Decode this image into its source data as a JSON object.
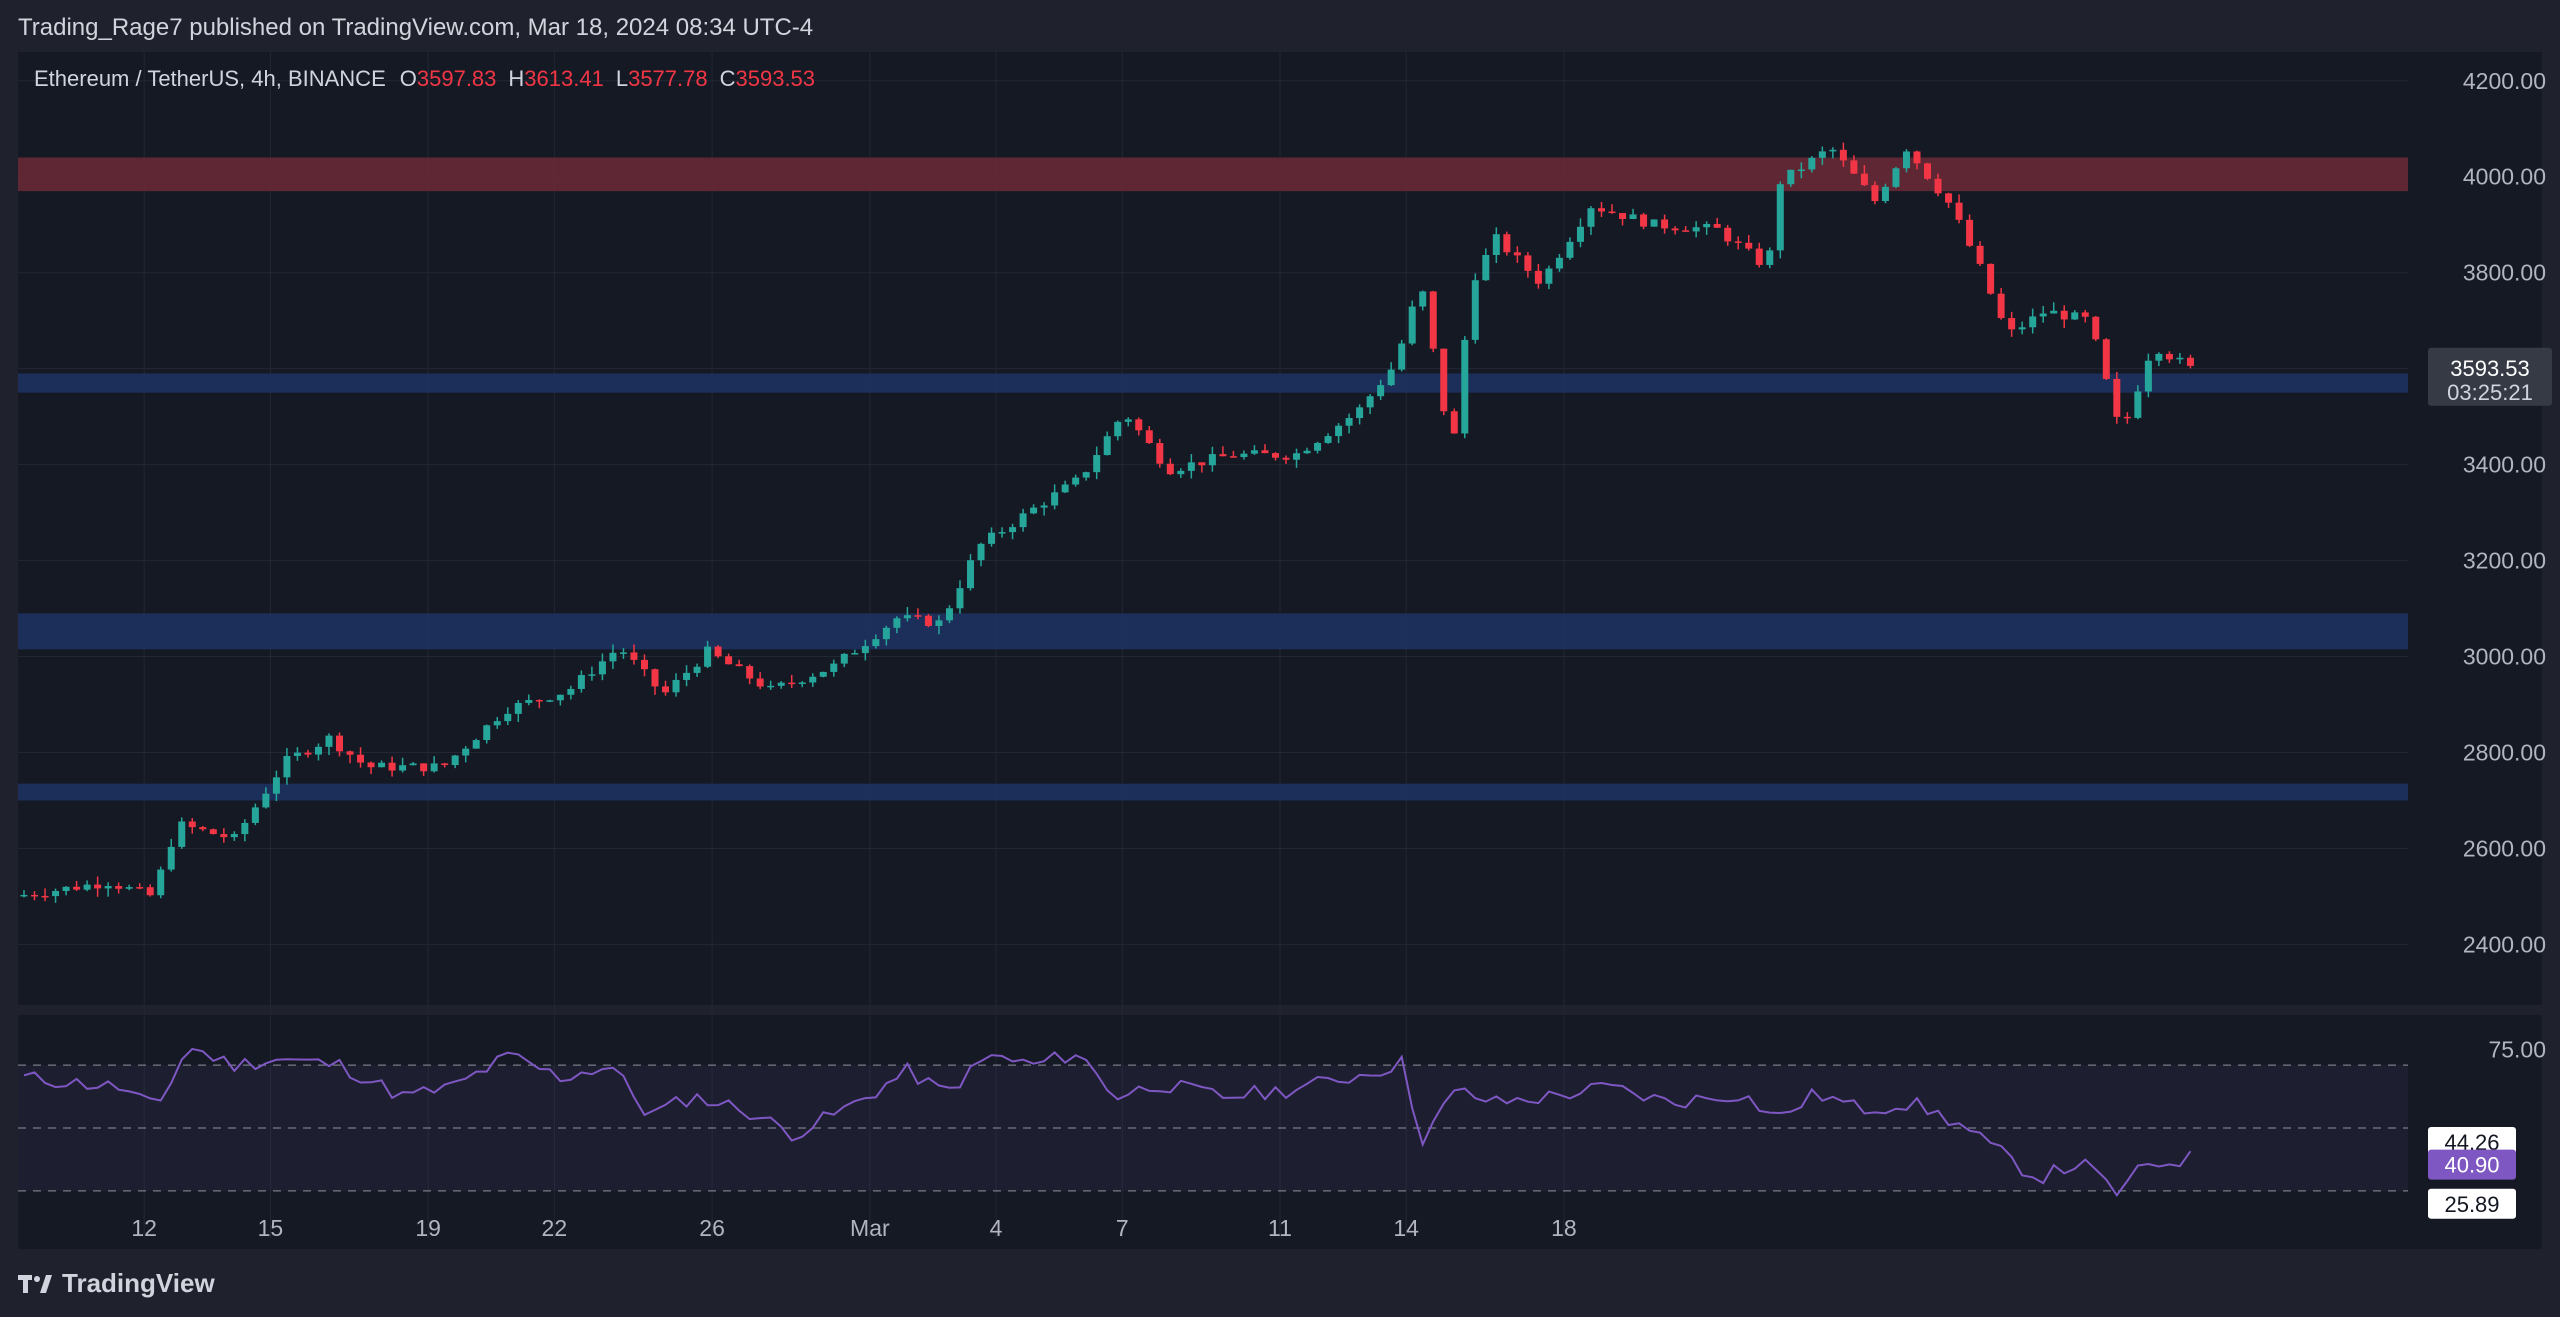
{
  "header": {
    "publish_line": "Trading_Rage7 published on TradingView.com, Mar 18, 2024 08:34 UTC-4"
  },
  "footer": {
    "brand": "TradingView"
  },
  "colors": {
    "up": "#26a69a",
    "down": "#f23645",
    "rsi": "#7e57c2",
    "resistance_zone": "#6b2a36",
    "support_zone": "#1d3262"
  },
  "chart_data": [
    {
      "type": "candlestick",
      "symbol": "Ethereum / TetherUS",
      "timeframe": "4h",
      "exchange": "BINANCE",
      "legend": {
        "symbol_line": "Ethereum / TetherUS, 4h, BINANCE",
        "o_label": "O",
        "o": "3597.83",
        "h_label": "H",
        "h": "3613.41",
        "l_label": "L",
        "l": "3577.78",
        "c_label": "C",
        "c": "3593.53"
      },
      "ylim": [
        2280,
        4260
      ],
      "y_ticks": [
        "4200.00",
        "4000.00",
        "3800.00",
        "3600.00",
        "3400.00",
        "3200.00",
        "3000.00",
        "2800.00",
        "2600.00",
        "2400.00"
      ],
      "x_ticks": [
        "12",
        "15",
        "19",
        "22",
        "26",
        "Mar",
        "4",
        "7",
        "11",
        "14",
        "18"
      ],
      "last_price": "3593.53",
      "countdown": "03:25:21",
      "zones": [
        {
          "kind": "resistance",
          "from": 3970,
          "to": 4040
        },
        {
          "kind": "support",
          "from": 3550,
          "to": 3590
        },
        {
          "kind": "support",
          "from": 3015,
          "to": 3090
        },
        {
          "kind": "support",
          "from": 2700,
          "to": 2735
        }
      ],
      "anchors": [
        {
          "d": 0,
          "p": 2500
        },
        {
          "d": 1.5,
          "p": 2530
        },
        {
          "d": 2.2,
          "p": 2500
        },
        {
          "d": 2.6,
          "p": 2650
        },
        {
          "d": 3.5,
          "p": 2620
        },
        {
          "d": 4.3,
          "p": 2780
        },
        {
          "d": 5.0,
          "p": 2830
        },
        {
          "d": 5.6,
          "p": 2770
        },
        {
          "d": 6.8,
          "p": 2770
        },
        {
          "d": 7.8,
          "p": 2890
        },
        {
          "d": 8.8,
          "p": 2930
        },
        {
          "d": 9.6,
          "p": 3020
        },
        {
          "d": 10.3,
          "p": 2920
        },
        {
          "d": 11.0,
          "p": 3010
        },
        {
          "d": 12.0,
          "p": 2930
        },
        {
          "d": 13.0,
          "p": 2980
        },
        {
          "d": 14.0,
          "p": 3080
        },
        {
          "d": 14.7,
          "p": 3070
        },
        {
          "d": 15.3,
          "p": 3230
        },
        {
          "d": 16.3,
          "p": 3320
        },
        {
          "d": 16.9,
          "p": 3370
        },
        {
          "d": 17.6,
          "p": 3510
        },
        {
          "d": 18.3,
          "p": 3390
        },
        {
          "d": 19.3,
          "p": 3420
        },
        {
          "d": 20.3,
          "p": 3420
        },
        {
          "d": 21.3,
          "p": 3510
        },
        {
          "d": 21.9,
          "p": 3610
        },
        {
          "d": 22.3,
          "p": 3780
        },
        {
          "d": 22.8,
          "p": 3420
        },
        {
          "d": 23.1,
          "p": 3780
        },
        {
          "d": 23.5,
          "p": 3870
        },
        {
          "d": 24.2,
          "p": 3780
        },
        {
          "d": 25.0,
          "p": 3940
        },
        {
          "d": 26.0,
          "p": 3900
        },
        {
          "d": 27.0,
          "p": 3890
        },
        {
          "d": 27.8,
          "p": 3810
        },
        {
          "d": 28.0,
          "p": 3990
        },
        {
          "d": 28.8,
          "p": 4060
        },
        {
          "d": 29.5,
          "p": 3950
        },
        {
          "d": 30.0,
          "p": 4060
        },
        {
          "d": 30.7,
          "p": 3940
        },
        {
          "d": 31.2,
          "p": 3800
        },
        {
          "d": 31.6,
          "p": 3670
        },
        {
          "d": 32.2,
          "p": 3720
        },
        {
          "d": 32.9,
          "p": 3700
        },
        {
          "d": 33.4,
          "p": 3460
        },
        {
          "d": 33.9,
          "p": 3650
        },
        {
          "d": 34.5,
          "p": 3600
        }
      ]
    },
    {
      "type": "line",
      "indicator": "RSI",
      "ylim": [
        15,
        85
      ],
      "levels": [
        70,
        50,
        30
      ],
      "y_ticks": [
        "75.00"
      ],
      "badges": [
        "44.26",
        "40.90",
        "25.89"
      ],
      "anchors": [
        {
          "d": 0,
          "v": 66
        },
        {
          "d": 1.5,
          "v": 63
        },
        {
          "d": 2.1,
          "v": 56
        },
        {
          "d": 2.6,
          "v": 76
        },
        {
          "d": 3.3,
          "v": 70
        },
        {
          "d": 4.0,
          "v": 72
        },
        {
          "d": 5.0,
          "v": 70
        },
        {
          "d": 6.0,
          "v": 60
        },
        {
          "d": 6.8,
          "v": 63
        },
        {
          "d": 7.7,
          "v": 73
        },
        {
          "d": 8.5,
          "v": 66
        },
        {
          "d": 9.3,
          "v": 70
        },
        {
          "d": 9.9,
          "v": 54
        },
        {
          "d": 10.6,
          "v": 60
        },
        {
          "d": 11.4,
          "v": 56
        },
        {
          "d": 12.2,
          "v": 48
        },
        {
          "d": 13.2,
          "v": 58
        },
        {
          "d": 14.0,
          "v": 68
        },
        {
          "d": 14.6,
          "v": 61
        },
        {
          "d": 15.3,
          "v": 73
        },
        {
          "d": 16.0,
          "v": 70
        },
        {
          "d": 16.7,
          "v": 74
        },
        {
          "d": 17.3,
          "v": 60
        },
        {
          "d": 18.0,
          "v": 64
        },
        {
          "d": 19.0,
          "v": 60
        },
        {
          "d": 20.0,
          "v": 62
        },
        {
          "d": 21.2,
          "v": 67
        },
        {
          "d": 21.9,
          "v": 71
        },
        {
          "d": 22.1,
          "v": 45
        },
        {
          "d": 22.7,
          "v": 62
        },
        {
          "d": 23.3,
          "v": 58
        },
        {
          "d": 24.2,
          "v": 60
        },
        {
          "d": 25.1,
          "v": 63
        },
        {
          "d": 26.1,
          "v": 58
        },
        {
          "d": 27.2,
          "v": 61
        },
        {
          "d": 27.8,
          "v": 53
        },
        {
          "d": 28.4,
          "v": 61
        },
        {
          "d": 29.1,
          "v": 56
        },
        {
          "d": 29.9,
          "v": 58
        },
        {
          "d": 30.6,
          "v": 52
        },
        {
          "d": 31.4,
          "v": 41
        },
        {
          "d": 31.9,
          "v": 34
        },
        {
          "d": 32.6,
          "v": 39
        },
        {
          "d": 33.2,
          "v": 29
        },
        {
          "d": 33.6,
          "v": 38
        },
        {
          "d": 34.5,
          "v": 41
        }
      ]
    }
  ]
}
